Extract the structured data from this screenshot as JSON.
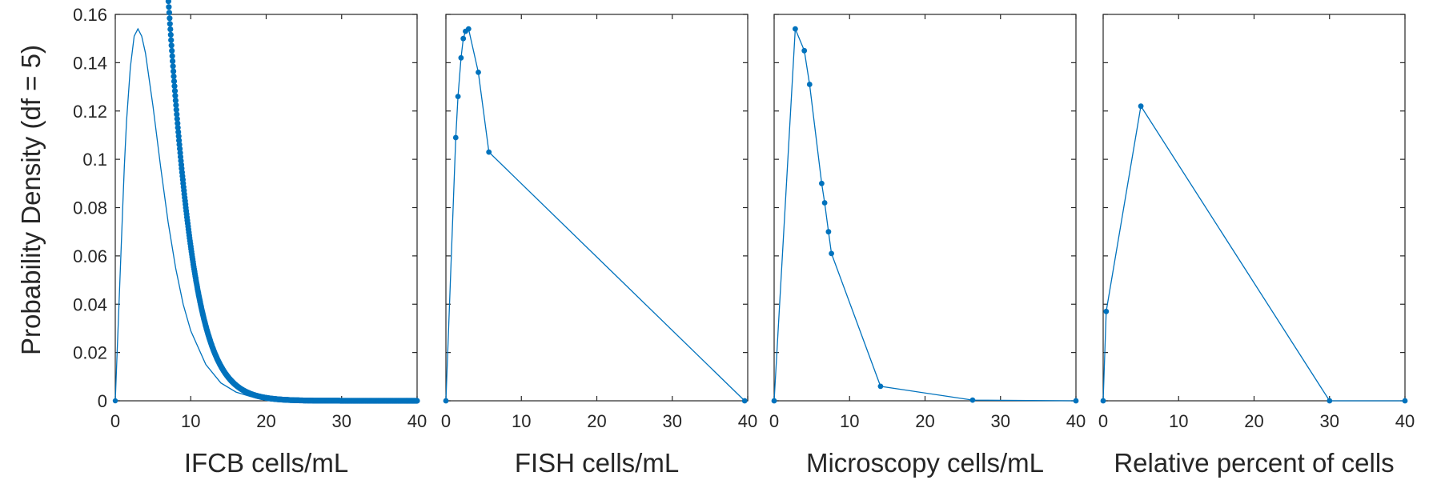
{
  "figure": {
    "ylabel": "Probability Density (df = 5)",
    "color": "#0072BD"
  },
  "chart_data": [
    {
      "type": "line",
      "xlabel": "IFCB cells/mL",
      "xlim": [
        0,
        40
      ],
      "ylim": [
        0,
        0.16
      ],
      "xticks": [
        "0",
        "10",
        "20",
        "30",
        "40"
      ],
      "yticks": [
        "0",
        "0.02",
        "0.04",
        "0.06",
        "0.08",
        "0.1",
        "0.12",
        "0.14",
        "0.16"
      ],
      "grid": false,
      "dense_curve": "chi-square pdf, df = 5, sampled densely from x = 1 to x = 40",
      "x": [
        0,
        1.0,
        1.2,
        1.5,
        2.0,
        2.5,
        3.0,
        3.5,
        4.0,
        5.0,
        6.0,
        7.0,
        8.0,
        9.0,
        10.0,
        12.0,
        14.0,
        16.0,
        18.0,
        20.0,
        23.0,
        26.0,
        30.0,
        34.0,
        36.0,
        38.0,
        40.0
      ],
      "y": [
        0,
        0.081,
        0.097,
        0.116,
        0.138,
        0.151,
        0.154,
        0.151,
        0.144,
        0.122,
        0.097,
        0.074,
        0.055,
        0.04,
        0.029,
        0.015,
        0.0074,
        0.0036,
        0.0017,
        0.0008,
        0.0003,
        0.0001,
        0,
        0,
        0,
        0,
        0
      ]
    },
    {
      "type": "line",
      "xlabel": "FISH cells/mL",
      "xlim": [
        0,
        40
      ],
      "ylim": [
        0,
        0.16
      ],
      "xticks": [
        "0",
        "10",
        "20",
        "30",
        "40"
      ],
      "grid": false,
      "x": [
        0,
        1.3,
        1.6,
        2.0,
        2.3,
        2.6,
        3.0,
        4.3,
        5.7,
        39.6
      ],
      "y": [
        0,
        0.109,
        0.126,
        0.142,
        0.15,
        0.153,
        0.154,
        0.136,
        0.103,
        0
      ]
    },
    {
      "type": "line",
      "xlabel": "Microscopy cells/mL",
      "xlim": [
        0,
        40
      ],
      "ylim": [
        0,
        0.16
      ],
      "xticks": [
        "0",
        "10",
        "20",
        "30",
        "40"
      ],
      "grid": false,
      "x": [
        0,
        2.8,
        4.0,
        4.7,
        6.3,
        6.7,
        7.2,
        7.6,
        14.1,
        26.3,
        40
      ],
      "y": [
        0,
        0.154,
        0.145,
        0.131,
        0.09,
        0.082,
        0.07,
        0.061,
        0.006,
        0.0003,
        0
      ]
    },
    {
      "type": "line",
      "xlabel": "Relative percent of cells",
      "xlim": [
        0,
        40
      ],
      "ylim": [
        0,
        0.16
      ],
      "xticks": [
        "0",
        "10",
        "20",
        "30",
        "40"
      ],
      "grid": false,
      "x": [
        0,
        0.4,
        5.0,
        30.0,
        40
      ],
      "y": [
        0,
        0.037,
        0.122,
        0,
        0
      ]
    }
  ]
}
